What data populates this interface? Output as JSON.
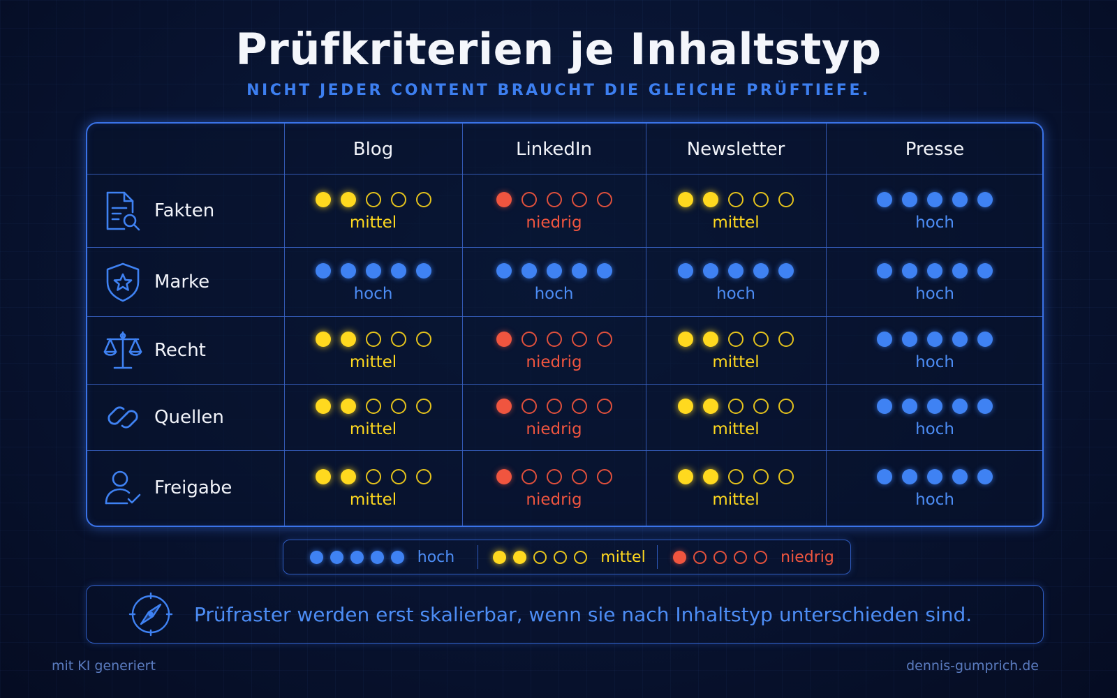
{
  "title": "Prüfkriterien je Inhaltstyp",
  "subtitle": "NICHT JEDER CONTENT BRAUCHT DIE GLEICHE PRÜFTIEFE.",
  "columns": [
    "Blog",
    "LinkedIn",
    "Newsletter",
    "Presse"
  ],
  "rows": [
    {
      "label": "Fakten",
      "icon": "document-search-icon",
      "cells": [
        "mittel",
        "niedrig",
        "mittel",
        "hoch"
      ]
    },
    {
      "label": "Marke",
      "icon": "shield-star-icon",
      "cells": [
        "hoch",
        "hoch",
        "hoch",
        "hoch"
      ]
    },
    {
      "label": "Recht",
      "icon": "scales-icon",
      "cells": [
        "mittel",
        "niedrig",
        "mittel",
        "hoch"
      ]
    },
    {
      "label": "Quellen",
      "icon": "link-icon",
      "cells": [
        "mittel",
        "niedrig",
        "mittel",
        "hoch"
      ]
    },
    {
      "label": "Freigabe",
      "icon": "user-check-icon",
      "cells": [
        "mittel",
        "niedrig",
        "mittel",
        "hoch"
      ]
    }
  ],
  "legend": [
    {
      "level": "hoch",
      "label": "hoch"
    },
    {
      "level": "mittel",
      "label": "mittel"
    },
    {
      "level": "niedrig",
      "label": "niedrig"
    }
  ],
  "levels": {
    "hoch": {
      "filled": 5,
      "color": "#3f82f3"
    },
    "mittel": {
      "filled": 2,
      "color": "#ffd91f"
    },
    "niedrig": {
      "filled": 1,
      "color": "#f0553f"
    }
  },
  "note": {
    "icon": "compass-icon",
    "text": "Prüfraster werden erst skalierbar, wenn sie nach Inhaltstyp unterschieden sind."
  },
  "footer": {
    "left": "mit KI generiert",
    "right": "dennis-gumprich.de"
  }
}
